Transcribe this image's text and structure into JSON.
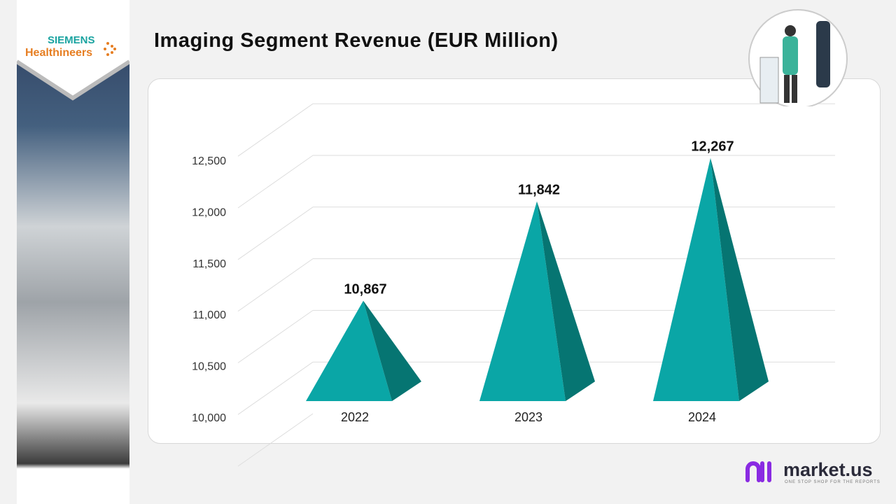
{
  "logo": {
    "line1": "SIEMENS",
    "line2": "Healthineers"
  },
  "title": "Imaging Segment Revenue (EUR Million)",
  "brand": {
    "name": "market.us",
    "tagline": "ONE STOP SHOP FOR THE REPORTS"
  },
  "colors": {
    "front": "#0aa6a6",
    "side": "#067572",
    "brand_purple": "#8a2be2"
  },
  "chart_data": {
    "type": "bar",
    "bar_shape": "3d-pyramid",
    "categories": [
      "2022",
      "2023",
      "2024"
    ],
    "values": [
      10867,
      11842,
      12267
    ],
    "data_labels": [
      "10,867",
      "11,842",
      "12,267"
    ],
    "yticks": [
      "10,000",
      "10,500",
      "11,000",
      "11,500",
      "12,000",
      "12,500"
    ],
    "ylim": [
      10000,
      12500
    ],
    "grid": true,
    "title": "Imaging Segment Revenue (EUR Million)"
  }
}
